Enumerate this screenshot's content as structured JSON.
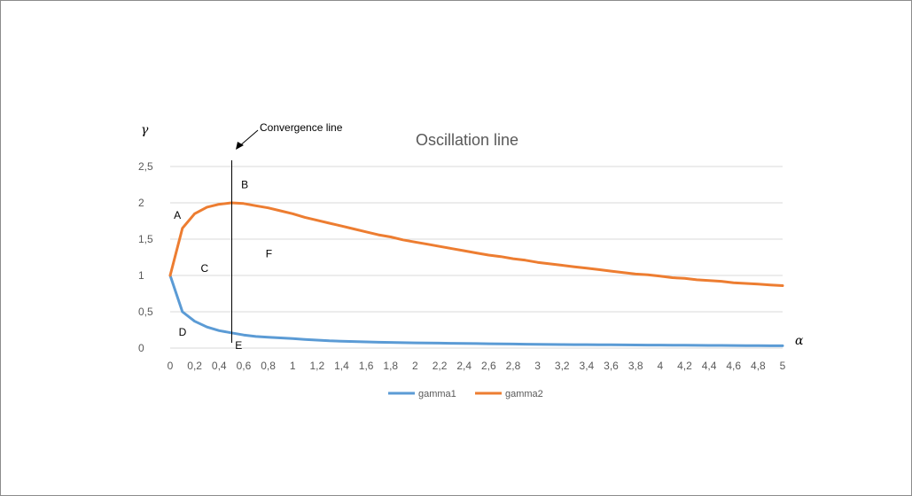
{
  "chart_data": {
    "type": "line",
    "title": "Oscillation line",
    "xlabel": "α",
    "ylabel": "γ",
    "ylim": [
      0,
      2.5
    ],
    "yticks": [
      "0",
      "0,5",
      "1",
      "1,5",
      "2",
      "2,5"
    ],
    "xlim": [
      0,
      5
    ],
    "xticks": [
      "0",
      "0,2",
      "0,4",
      "0,6",
      "0,8",
      "1",
      "1,2",
      "1,4",
      "1,6",
      "1,8",
      "2",
      "2,2",
      "2,4",
      "2,6",
      "2,8",
      "3",
      "3,2",
      "3,4",
      "3,6",
      "3,8",
      "4",
      "4,2",
      "4,4",
      "4,6",
      "4,8",
      "5"
    ],
    "grid": "horizontal",
    "legend": "bottom",
    "x": [
      0,
      0.1,
      0.2,
      0.3,
      0.4,
      0.5,
      0.6,
      0.7,
      0.8,
      0.9,
      1,
      1.1,
      1.2,
      1.3,
      1.4,
      1.5,
      1.6,
      1.7,
      1.8,
      1.9,
      2,
      2.1,
      2.2,
      2.3,
      2.4,
      2.5,
      2.6,
      2.7,
      2.8,
      2.9,
      3,
      3.1,
      3.2,
      3.3,
      3.4,
      3.5,
      3.6,
      3.7,
      3.8,
      3.9,
      4,
      4.1,
      4.2,
      4.3,
      4.4,
      4.5,
      4.6,
      4.7,
      4.8,
      4.9,
      5
    ],
    "series": [
      {
        "name": "gamma1",
        "color": "#5b9bd5",
        "values": [
          1,
          0.5,
          0.37,
          0.29,
          0.24,
          0.21,
          0.18,
          0.16,
          0.15,
          0.14,
          0.13,
          0.12,
          0.11,
          0.1,
          0.095,
          0.09,
          0.085,
          0.08,
          0.078,
          0.075,
          0.072,
          0.07,
          0.068,
          0.066,
          0.064,
          0.062,
          0.06,
          0.058,
          0.056,
          0.054,
          0.052,
          0.05,
          0.049,
          0.048,
          0.047,
          0.046,
          0.045,
          0.044,
          0.043,
          0.042,
          0.041,
          0.04,
          0.039,
          0.038,
          0.037,
          0.036,
          0.035,
          0.034,
          0.033,
          0.032,
          0.032
        ]
      },
      {
        "name": "gamma2",
        "color": "#ed7d31",
        "values": [
          1,
          1.65,
          1.85,
          1.94,
          1.98,
          2,
          1.99,
          1.96,
          1.93,
          1.89,
          1.85,
          1.8,
          1.76,
          1.72,
          1.68,
          1.64,
          1.6,
          1.56,
          1.53,
          1.49,
          1.46,
          1.43,
          1.4,
          1.37,
          1.34,
          1.31,
          1.28,
          1.26,
          1.23,
          1.21,
          1.18,
          1.16,
          1.14,
          1.12,
          1.1,
          1.08,
          1.06,
          1.04,
          1.02,
          1.01,
          0.99,
          0.97,
          0.96,
          0.94,
          0.93,
          0.92,
          0.9,
          0.89,
          0.88,
          0.87,
          0.86
        ]
      }
    ],
    "vline": {
      "x": 0.5,
      "label": "Convergence line"
    },
    "regions": [
      {
        "label": "A",
        "x": 0.03,
        "y": 1.78
      },
      {
        "label": "B",
        "x": 0.58,
        "y": 2.2
      },
      {
        "label": "C",
        "x": 0.25,
        "y": 1.05
      },
      {
        "label": "D",
        "x": 0.07,
        "y": 0.17
      },
      {
        "label": "E",
        "x": 0.53,
        "y": -0.01
      },
      {
        "label": "F",
        "x": 0.78,
        "y": 1.25
      }
    ]
  }
}
